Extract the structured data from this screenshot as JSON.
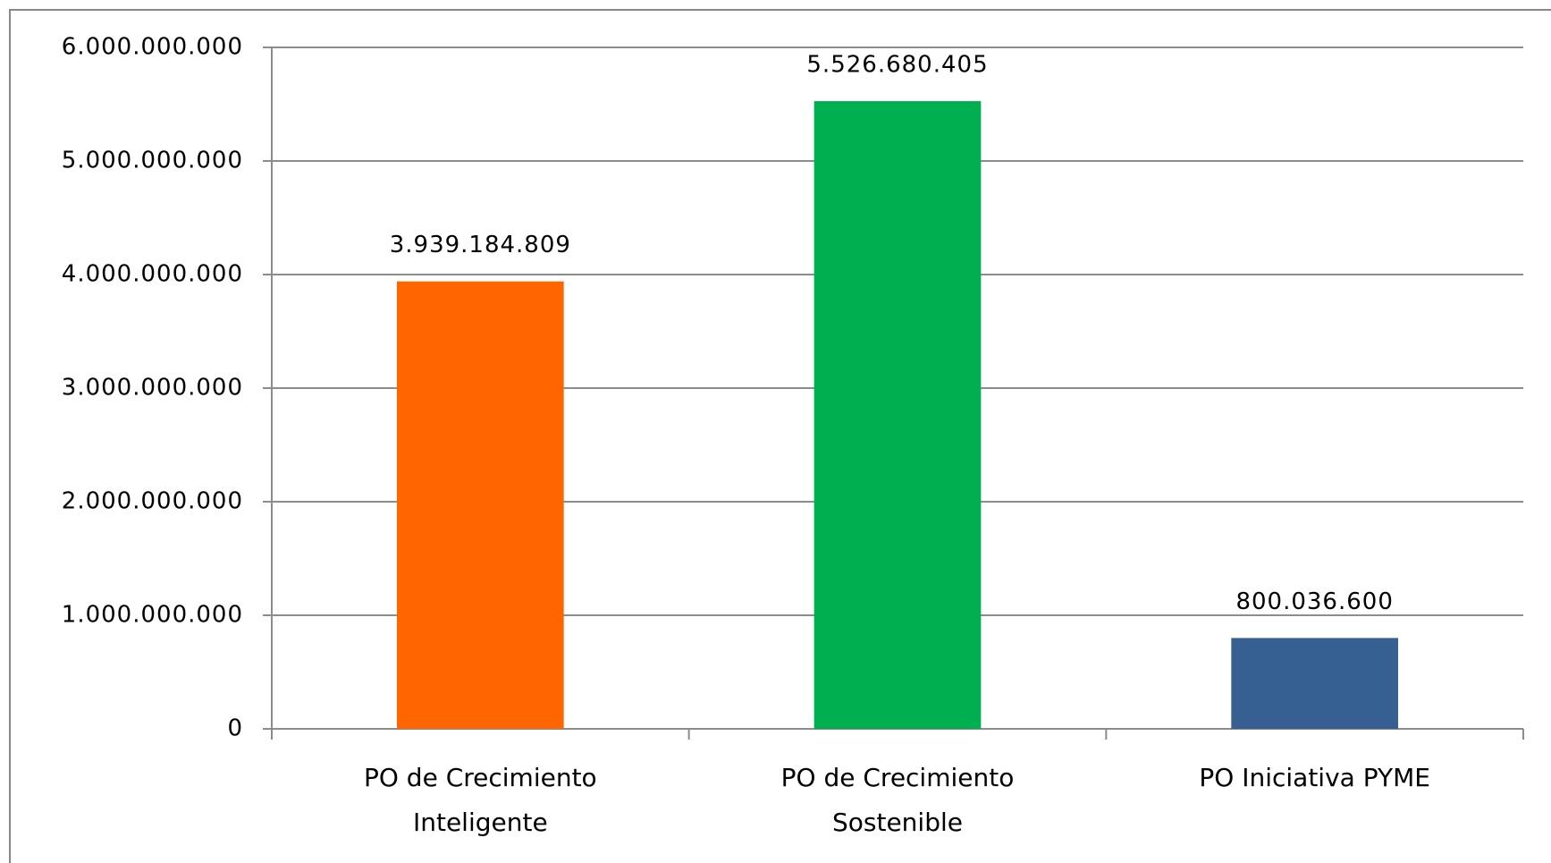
{
  "chart_data": {
    "type": "bar",
    "categories": [
      "PO de Crecimiento Inteligente",
      "PO de Crecimiento Sostenible",
      "PO Iniciativa PYME"
    ],
    "values": [
      3939184809,
      5526680405,
      800036600
    ],
    "value_labels": [
      "3.939.184.809",
      "5.526.680.405",
      "800.036.600"
    ],
    "colors": [
      "#ff6600",
      "#00b050",
      "#366092"
    ],
    "ylim": [
      0,
      6000000000
    ],
    "yticks": [
      0,
      {
        "value": 1000000000,
        "label": "1.000.000.000"
      },
      {
        "value": 2000000000,
        "label": "2.000.000.000"
      },
      {
        "value": 3000000000,
        "label": "3.000.000.000"
      },
      {
        "value": 4000000000,
        "label": "4.000.000.000"
      },
      {
        "value": 5000000000,
        "label": "5.000.000.000"
      },
      {
        "value": 6000000000,
        "label": "6.000.000.000"
      }
    ],
    "grid": true
  }
}
